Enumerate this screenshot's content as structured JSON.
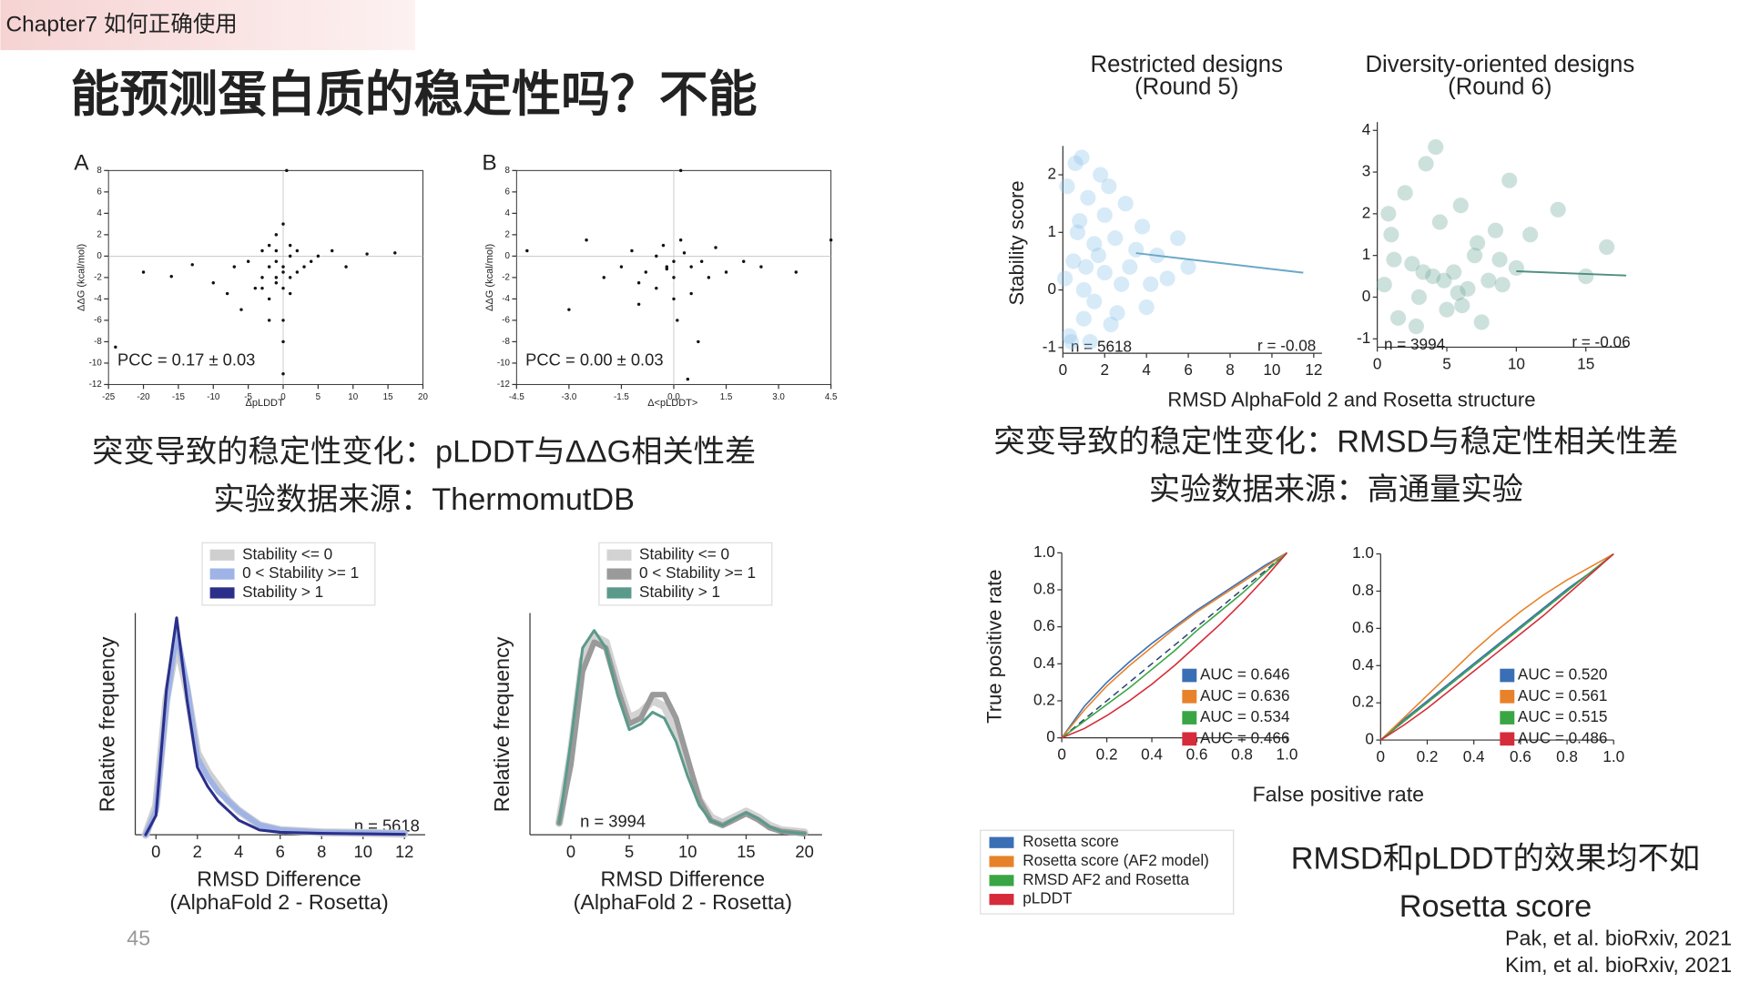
{
  "header": {
    "chapter": "Chapter7 如何正确使用",
    "title": "能预测蛋白质的稳定性吗？不能",
    "page_number": "45"
  },
  "captions": {
    "left_1": "突变导致的稳定性变化：pLDDT与ΔΔG相关性差",
    "left_2": "实验数据来源：ThermomutDB",
    "right_1": "突变导致的稳定性变化：RMSD与稳定性相关性差",
    "right_2": "实验数据来源：高通量实验",
    "conclusion_1": "RMSD和pLDDT的效果均不如",
    "conclusion_2": "Rosetta score"
  },
  "citations": [
    "Pak, et al. bioRxiv, 2021",
    "Kim, et al. bioRxiv, 2021"
  ],
  "roc_legend": [
    {
      "name": "Rosetta score",
      "color": "#3a6fb5"
    },
    {
      "name": "Rosetta score (AF2 model)",
      "color": "#e8822a"
    },
    {
      "name": "RMSD AF2 and Rosetta",
      "color": "#3aa544"
    },
    {
      "name": "pLDDT",
      "color": "#d62b3a"
    }
  ],
  "chart_data": [
    {
      "type": "scatter",
      "panel": "A",
      "xlabel": "ΔpLDDT",
      "ylabel": "ΔΔG (kcal/mol)",
      "annotations": [
        "PCC = 0.17 ± 0.03"
      ],
      "frame": true,
      "zero_lines": true,
      "color": "#111111",
      "xlim": [
        -25,
        20
      ],
      "xticks": [
        -25,
        -20,
        -15,
        -10,
        -5,
        0,
        5,
        10,
        15,
        20
      ],
      "ylim": [
        -12,
        8
      ],
      "yticks": [
        -12,
        -10,
        -8,
        -6,
        -4,
        -2,
        0,
        2,
        4,
        6,
        8
      ],
      "x": [
        -24,
        -20,
        -16,
        -13,
        -10,
        -8,
        -7,
        -6,
        -5,
        -4,
        -3,
        -3,
        -2,
        -2,
        -2,
        -1,
        -1,
        -1,
        -1,
        0,
        0,
        0,
        0,
        0,
        0,
        1,
        1,
        1,
        2,
        2,
        3,
        4,
        5,
        7,
        9,
        12,
        16,
        -1,
        0,
        1,
        -3,
        -2,
        0.5
      ],
      "y": [
        -8.5,
        -1.5,
        -1.9,
        -0.8,
        -2.5,
        -3.5,
        -1,
        -5,
        -0.5,
        -3,
        -2,
        0.5,
        -1,
        -4,
        1,
        -2,
        -0.5,
        0.5,
        2,
        -1,
        -3,
        -6,
        -8,
        -11,
        3,
        -2,
        0,
        1,
        -1.5,
        0.5,
        -1,
        -0.5,
        0,
        0.5,
        -1,
        0.2,
        0.3,
        -2.5,
        -1.5,
        -3.5,
        -3,
        -6,
        8
      ]
    },
    {
      "type": "scatter",
      "panel": "B",
      "xlabel": "Δ<pLDDT>",
      "ylabel": "ΔΔG (kcal/mol)",
      "annotations": [
        "PCC = 0.00 ± 0.03"
      ],
      "frame": true,
      "zero_lines": true,
      "color": "#111111",
      "xlim": [
        -4.5,
        4.5
      ],
      "xticks": [
        -4.5,
        {
          "value": -3,
          "label": "-3.0"
        },
        -1.5,
        {
          "value": 0,
          "label": "0.0"
        },
        1.5,
        {
          "value": 3,
          "label": "3.0"
        },
        4.5
      ],
      "ylim": [
        -12,
        8
      ],
      "yticks": [
        -12,
        -10,
        -8,
        -6,
        -4,
        -2,
        0,
        2,
        4,
        6,
        8
      ],
      "x": [
        -4.2,
        -2.5,
        -2,
        -1.5,
        -1.2,
        -1,
        -0.8,
        -0.5,
        -0.5,
        -0.3,
        -0.2,
        0,
        0,
        0,
        0.1,
        0.2,
        0.3,
        0.5,
        0.5,
        0.8,
        1,
        1.2,
        1.5,
        2,
        2.5,
        3.5,
        4.5,
        -3,
        0.2,
        -1,
        0.7,
        -0.2,
        0.4
      ],
      "y": [
        0.5,
        1.5,
        -2,
        -1,
        0.5,
        -2.5,
        -1.5,
        0,
        -3,
        1,
        -1,
        -0.5,
        -2,
        -4,
        -6,
        1.5,
        0.3,
        -1,
        -3.5,
        -0.5,
        -2,
        0.8,
        -1.5,
        -0.5,
        -1,
        -1.5,
        1.5,
        -5,
        8,
        -4.5,
        -8,
        -1.2,
        -11.5
      ]
    },
    {
      "type": "scatter",
      "title": "Restricted designs",
      "subtitle": "(Round 5)",
      "ylabel": "Stability score",
      "xlabel": "RMSD AlphaFold 2 and Rosetta structure",
      "annotations": [
        "n = 5618",
        "r = -0.08"
      ],
      "color": "#8cc4ea",
      "trend_color": "#6aa8c8",
      "xlim": [
        0,
        12.4
      ],
      "xticks": [
        0,
        2,
        4,
        6,
        8,
        10,
        12
      ],
      "ylim": [
        -1.1,
        2.5
      ],
      "yticks": [
        -1,
        0,
        1,
        2
      ],
      "x": [
        0.2,
        0.3,
        0.5,
        0.6,
        0.8,
        1,
        1,
        1.2,
        1.5,
        1.5,
        1.8,
        2,
        2,
        2.3,
        2.5,
        2.8,
        3,
        3.2,
        3.5,
        4,
        4.5,
        5,
        5.5,
        6,
        0.4,
        0.9,
        1.3,
        1.7,
        2.2,
        0.1,
        0.7,
        3.8,
        4.2,
        1.1,
        2.6
      ],
      "y": [
        1.8,
        -0.8,
        0.5,
        2.2,
        1.2,
        0,
        -0.5,
        1.6,
        0.8,
        -0.2,
        2,
        0.3,
        1.3,
        -0.6,
        0.9,
        0.1,
        1.5,
        0.4,
        0.7,
        -0.3,
        0.6,
        0.2,
        0.9,
        0.4,
        -0.9,
        2.3,
        -0.9,
        0.6,
        1.8,
        0.2,
        1,
        1.1,
        0.1,
        0.4,
        -0.4
      ],
      "trend_x": [
        3.5,
        11.5
      ],
      "trend_y": [
        0.64,
        0.3
      ]
    },
    {
      "type": "scatter",
      "title": "Diversity-oriented designs",
      "subtitle": "(Round 6)",
      "annotations": [
        "n = 3994",
        "r = -0.06"
      ],
      "color": "#6fa89a",
      "trend_color": "#4f8f80",
      "xlim": [
        0,
        18
      ],
      "xticks": [
        0,
        5,
        10,
        15
      ],
      "ylim": [
        -1.2,
        4.2
      ],
      "yticks": [
        -1,
        0,
        1,
        2,
        3,
        4
      ],
      "x": [
        0.5,
        1,
        1.5,
        2,
        2.5,
        3,
        3.5,
        4,
        4.5,
        5,
        5.5,
        6,
        6.5,
        7,
        7.5,
        8,
        8.5,
        9,
        9.5,
        10,
        1.2,
        2.8,
        4.2,
        5.8,
        7.2,
        3.3,
        6.1,
        8.8,
        11,
        13,
        15,
        16.5,
        0.8,
        4.8
      ],
      "y": [
        0.3,
        1.5,
        -0.5,
        2.5,
        0.8,
        0,
        3.2,
        0.5,
        1.8,
        -0.3,
        0.6,
        2.2,
        0.2,
        1,
        -0.6,
        0.4,
        1.6,
        0.3,
        2.8,
        0.7,
        0.9,
        -0.7,
        3.6,
        0.1,
        1.3,
        0.6,
        -0.2,
        0.9,
        1.5,
        2.1,
        0.5,
        1.2,
        2,
        0.4
      ],
      "trend_x": [
        10,
        17.9
      ],
      "trend_y": [
        0.62,
        0.52
      ]
    },
    {
      "type": "line",
      "ylabel": "Relative frequency",
      "xlabel": "RMSD Difference",
      "xlabel_line2": "(AlphaFold 2 - Rosetta)",
      "annotations": [
        "n = 5618"
      ],
      "xlim": [
        -1,
        13
      ],
      "xticks": [
        0,
        2,
        4,
        6,
        8,
        10,
        12
      ],
      "ylim": [
        0,
        0.46
      ],
      "x": [
        -0.5,
        0,
        0.5,
        1,
        1.5,
        2,
        2.5,
        3,
        3.5,
        4,
        5,
        6,
        8,
        10,
        12
      ],
      "series": [
        {
          "name": "Stability <= 0",
          "color": "#cfcfcf",
          "values": [
            0,
            0.06,
            0.28,
            0.4,
            0.3,
            0.17,
            0.13,
            0.1,
            0.07,
            0.05,
            0.02,
            0.01,
            0.005,
            0.004,
            0.002
          ]
        },
        {
          "name": "0 < Stability >= 1",
          "color": "#9fb3e6",
          "values": [
            0,
            0.05,
            0.27,
            0.42,
            0.31,
            0.16,
            0.12,
            0.09,
            0.07,
            0.05,
            0.02,
            0.01,
            0.005,
            0.004,
            0.003
          ]
        },
        {
          "name": "Stability > 1",
          "color": "#2b2f8a",
          "values": [
            0,
            0.04,
            0.3,
            0.45,
            0.28,
            0.14,
            0.1,
            0.07,
            0.05,
            0.03,
            0.01,
            0.005,
            0.003,
            0.002,
            0.001
          ]
        }
      ]
    },
    {
      "type": "line",
      "ylabel": "Relative frequency",
      "xlabel": "RMSD Difference",
      "xlabel_line2": "(AlphaFold 2 - Rosetta)",
      "annotations": [
        "n = 3994"
      ],
      "xlim": [
        -3.5,
        21.5
      ],
      "xticks": [
        0,
        5,
        10,
        15,
        20
      ],
      "ylim": [
        0,
        0.19
      ],
      "x": [
        -1,
        0,
        1,
        2,
        3,
        4,
        5,
        6,
        7,
        8,
        9,
        10,
        11,
        12,
        13,
        14,
        15,
        16,
        17,
        18,
        20
      ],
      "series": [
        {
          "name": "Stability <= 0",
          "color": "#d3d3d3",
          "values": [
            0.01,
            0.07,
            0.15,
            0.17,
            0.165,
            0.13,
            0.1,
            0.105,
            0.115,
            0.11,
            0.09,
            0.06,
            0.03,
            0.015,
            0.01,
            0.015,
            0.02,
            0.015,
            0.008,
            0.004,
            0.002
          ]
        },
        {
          "name": "0 < Stability >= 1",
          "color": "#9a9a9a",
          "values": [
            0.01,
            0.06,
            0.14,
            0.165,
            0.16,
            0.125,
            0.095,
            0.1,
            0.12,
            0.12,
            0.1,
            0.065,
            0.03,
            0.012,
            0.008,
            0.013,
            0.018,
            0.013,
            0.006,
            0.003,
            0.001
          ]
        },
        {
          "name": "Stability > 1",
          "color": "#5b9a8b",
          "values": [
            0.01,
            0.08,
            0.16,
            0.175,
            0.16,
            0.12,
            0.09,
            0.095,
            0.105,
            0.1,
            0.08,
            0.05,
            0.025,
            0.012,
            0.008,
            0.014,
            0.019,
            0.014,
            0.007,
            0.003,
            0.001
          ]
        }
      ]
    },
    {
      "type": "roc",
      "ylabel": "True positive rate",
      "xlabel": "False positive rate",
      "xlim": [
        0,
        1
      ],
      "xticks": [
        0,
        0.2,
        0.4,
        0.6,
        0.8,
        {
          "value": 1,
          "label": "1.0"
        }
      ],
      "ylim": [
        0,
        1
      ],
      "yticks": [
        0,
        0.2,
        0.4,
        0.6,
        0.8,
        {
          "value": 1,
          "label": "1.0"
        }
      ],
      "x": [
        0,
        0.1,
        0.2,
        0.3,
        0.4,
        0.5,
        0.6,
        0.7,
        0.8,
        0.9,
        1
      ],
      "series": [
        {
          "label": "AUC = 0.646",
          "color": "#3a6fb5",
          "values": [
            0,
            0.17,
            0.3,
            0.41,
            0.51,
            0.6,
            0.69,
            0.77,
            0.85,
            0.93,
            1
          ]
        },
        {
          "label": "AUC = 0.636",
          "color": "#e8822a",
          "values": [
            0,
            0.15,
            0.28,
            0.39,
            0.49,
            0.59,
            0.68,
            0.76,
            0.84,
            0.92,
            1
          ]
        },
        {
          "label": "AUC = 0.534",
          "color": "#3aa544",
          "values": [
            0,
            0.09,
            0.18,
            0.27,
            0.37,
            0.47,
            0.58,
            0.68,
            0.78,
            0.89,
            1
          ]
        },
        {
          "label": "AUC = 0.466",
          "color": "#d62b3a",
          "values": [
            0,
            0.05,
            0.12,
            0.2,
            0.29,
            0.39,
            0.5,
            0.61,
            0.73,
            0.86,
            1
          ]
        }
      ]
    },
    {
      "type": "roc",
      "xlim": [
        0,
        1
      ],
      "xticks": [
        0,
        0.2,
        0.4,
        0.6,
        0.8,
        {
          "value": 1,
          "label": "1.0"
        }
      ],
      "ylim": [
        0,
        1
      ],
      "yticks": [
        0,
        0.2,
        0.4,
        0.6,
        0.8,
        {
          "value": 1,
          "label": "1.0"
        }
      ],
      "x": [
        0,
        0.1,
        0.2,
        0.3,
        0.4,
        0.5,
        0.6,
        0.7,
        0.8,
        0.9,
        1
      ],
      "series": [
        {
          "label": "AUC = 0.520",
          "color": "#3a6fb5",
          "values": [
            0,
            0.11,
            0.21,
            0.31,
            0.41,
            0.51,
            0.61,
            0.71,
            0.81,
            0.9,
            1
          ]
        },
        {
          "label": "AUC = 0.561",
          "color": "#e8822a",
          "values": [
            0,
            0.12,
            0.24,
            0.36,
            0.48,
            0.59,
            0.69,
            0.78,
            0.86,
            0.93,
            1
          ]
        },
        {
          "label": "AUC = 0.515",
          "color": "#3aa544",
          "values": [
            0,
            0.1,
            0.2,
            0.3,
            0.4,
            0.5,
            0.6,
            0.7,
            0.8,
            0.9,
            1
          ]
        },
        {
          "label": "AUC = 0.486",
          "color": "#d62b3a",
          "values": [
            0,
            0.08,
            0.17,
            0.27,
            0.37,
            0.47,
            0.57,
            0.67,
            0.78,
            0.89,
            1
          ]
        }
      ]
    }
  ]
}
